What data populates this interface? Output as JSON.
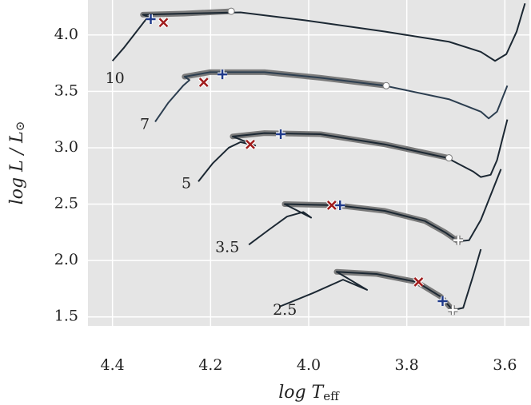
{
  "chart_data": {
    "type": "line",
    "xlabel": {
      "main": "log T",
      "sub": "eff"
    },
    "ylabel": {
      "main": "log L / L",
      "sub": "⊙"
    },
    "xlim": [
      4.45,
      3.55
    ],
    "ylim": [
      1.42,
      4.31
    ],
    "xticks": [
      4.4,
      4.2,
      {
        "value": 4,
        "label": "4.0"
      },
      3.8,
      3.6
    ],
    "yticks": [
      1.5,
      {
        "value": 2,
        "label": "2.0"
      },
      2.5,
      {
        "value": 3,
        "label": "3.0"
      },
      3.5,
      {
        "value": 4,
        "label": "4.0"
      }
    ],
    "grid": true,
    "series": [
      {
        "name": "10",
        "color": "#1c2833",
        "x": [
          4.4,
          4.376,
          4.351,
          4.335,
          4.327,
          4.338,
          4.253,
          4.139,
          4.008,
          3.845,
          3.714,
          3.649,
          3.62,
          3.597,
          3.576,
          3.559
        ],
        "values": [
          3.77,
          3.89,
          4.03,
          4.12,
          4.16,
          4.18,
          4.19,
          4.2,
          4.13,
          4.03,
          3.94,
          3.85,
          3.77,
          3.83,
          4.03,
          4.28
        ],
        "highlight": {
          "color": "#7a7a7a",
          "x": [
            4.338,
            4.253,
            4.158
          ],
          "values": [
            4.18,
            4.19,
            4.21
          ]
        },
        "markers": [
          {
            "symbol": "plus",
            "color": "#1f3a8a",
            "x": 4.322,
            "y": 4.14
          },
          {
            "symbol": "cross",
            "color": "#a01c1c",
            "x": 4.296,
            "y": 4.11
          },
          {
            "symbol": "circle",
            "color": "#ffffff",
            "x": 4.158,
            "y": 4.21
          }
        ]
      },
      {
        "name": "7",
        "color": "#2c3e50",
        "x": [
          4.313,
          4.286,
          4.256,
          4.243,
          4.253,
          4.201,
          4.09,
          3.976,
          3.845,
          3.714,
          3.649,
          3.633,
          3.616,
          3.595
        ],
        "values": [
          3.23,
          3.4,
          3.55,
          3.6,
          3.63,
          3.67,
          3.67,
          3.62,
          3.55,
          3.43,
          3.32,
          3.26,
          3.32,
          3.55
        ],
        "highlight": {
          "color": "#7a7a7a",
          "x": [
            4.253,
            4.201,
            4.09,
            3.976,
            3.842
          ],
          "values": [
            3.63,
            3.67,
            3.67,
            3.62,
            3.55
          ]
        },
        "markers": [
          {
            "symbol": "cross",
            "color": "#a01c1c",
            "x": 4.214,
            "y": 3.58
          },
          {
            "symbol": "plus",
            "color": "#1f3a8a",
            "x": 4.176,
            "y": 3.65
          },
          {
            "symbol": "circle",
            "color": "#ffffff",
            "x": 3.842,
            "y": 3.55
          }
        ]
      },
      {
        "name": "5",
        "color": "#1c2833",
        "x": [
          4.225,
          4.196,
          4.163,
          4.139,
          4.109,
          4.155,
          4.09,
          3.976,
          3.845,
          3.718,
          3.665,
          3.649,
          3.629,
          3.616,
          3.595
        ],
        "values": [
          2.7,
          2.86,
          3.0,
          3.05,
          3.02,
          3.1,
          3.13,
          3.12,
          3.03,
          2.91,
          2.79,
          2.74,
          2.76,
          2.89,
          3.25
        ],
        "highlight": {
          "color": "#7a7a7a",
          "x": [
            4.155,
            4.09,
            3.976,
            3.845,
            3.714
          ],
          "values": [
            3.1,
            3.13,
            3.12,
            3.03,
            2.91
          ]
        },
        "markers": [
          {
            "symbol": "cross",
            "color": "#a01c1c",
            "x": 4.119,
            "y": 3.03
          },
          {
            "symbol": "plus",
            "color": "#1f3a8a",
            "x": 4.057,
            "y": 3.12
          },
          {
            "symbol": "circle",
            "color": "#ffffff",
            "x": 3.714,
            "y": 2.91
          }
        ]
      },
      {
        "name": "3.5",
        "color": "#1c2833",
        "x": [
          4.122,
          4.082,
          4.044,
          4.011,
          3.995,
          4.049,
          3.943,
          3.845,
          3.763,
          3.722,
          3.695,
          3.673,
          3.649,
          3.608
        ],
        "values": [
          2.14,
          2.27,
          2.39,
          2.43,
          2.38,
          2.5,
          2.49,
          2.44,
          2.35,
          2.25,
          2.17,
          2.18,
          2.36,
          2.81
        ],
        "highlight": {
          "color": "#7a7a7a",
          "x": [
            4.049,
            3.943,
            3.845,
            3.763,
            3.722,
            3.695
          ],
          "values": [
            2.5,
            2.49,
            2.44,
            2.35,
            2.25,
            2.17
          ]
        },
        "markers": [
          {
            "symbol": "cross",
            "color": "#a01c1c",
            "x": 3.953,
            "y": 2.49
          },
          {
            "symbol": "plus",
            "color": "#1f3a8a",
            "x": 3.936,
            "y": 2.49
          },
          {
            "symbol": "plus",
            "color": "#ffffff",
            "x": 3.695,
            "y": 2.18
          }
        ]
      },
      {
        "name": "2.5",
        "color": "#1c2833",
        "x": [
          4.06,
          3.992,
          3.93,
          3.881,
          3.943,
          3.861,
          3.78,
          3.731,
          3.706,
          3.685,
          3.665,
          3.649
        ],
        "values": [
          1.59,
          1.71,
          1.83,
          1.74,
          1.9,
          1.88,
          1.81,
          1.68,
          1.56,
          1.58,
          1.86,
          2.1
        ],
        "highlight": {
          "color": "#7a7a7a",
          "x": [
            3.943,
            3.861,
            3.78,
            3.731,
            3.706
          ],
          "values": [
            1.9,
            1.88,
            1.81,
            1.68,
            1.56
          ]
        },
        "markers": [
          {
            "symbol": "cross",
            "color": "#a01c1c",
            "x": 3.776,
            "y": 1.81
          },
          {
            "symbol": "plus",
            "color": "#1f3a8a",
            "x": 3.727,
            "y": 1.64
          },
          {
            "symbol": "plus",
            "color": "#ffffff",
            "x": 3.706,
            "y": 1.56
          }
        ]
      }
    ]
  }
}
